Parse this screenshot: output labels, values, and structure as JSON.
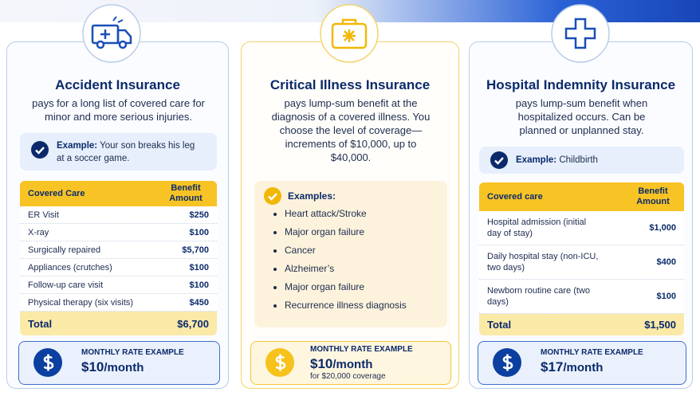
{
  "cards": [
    {
      "title": "Accident Insurance",
      "description": "pays for a long list of covered care for minor and more serious injuries.",
      "example": {
        "label": "Example:",
        "text": "Your son breaks his leg at a soccer game."
      },
      "table": {
        "headers": [
          "Covered Care",
          "Benefit Amount"
        ],
        "rows": [
          [
            "ER Visit",
            "$250"
          ],
          [
            "X-ray",
            "$100"
          ],
          [
            "Surgically repaired",
            "$5,700"
          ],
          [
            "Appliances (crutches)",
            "$100"
          ],
          [
            "Follow-up care visit",
            "$100"
          ],
          [
            "Physical therapy (six visits)",
            "$450"
          ]
        ],
        "total": [
          "Total",
          "$6,700"
        ]
      },
      "rate": {
        "label": "MONTHLY RATE EXAMPLE",
        "amount": "$10",
        "period": "/month"
      }
    },
    {
      "title": "Critical Illness Insurance",
      "description": "pays lump-sum benefit at the diagnosis of a covered illness. You choose the level of coverage—increments of $10,000, up to $40,000.",
      "examples": {
        "label": "Examples:",
        "items": [
          "Heart attack/Stroke",
          "Major organ failure",
          "Cancer",
          "Alzheimer’s",
          "Major organ failure",
          "Recurrence illness diagnosis"
        ]
      },
      "rate": {
        "label": "MONTHLY RATE EXAMPLE",
        "amount": "$10",
        "period": "/month",
        "note": "for $20,000 coverage"
      }
    },
    {
      "title": "Hospital Indemnity Insurance",
      "description": "pays lump-sum benefit when hospitalized occurs. Can be planned or unplanned stay.",
      "example": {
        "label": "Example:",
        "text": "Childbirth"
      },
      "table": {
        "headers": [
          "Covered care",
          "Benefit Amount"
        ],
        "rows": [
          [
            "Hospital admission (initial day of stay)",
            "$1,000"
          ],
          [
            "Daily hospital stay (non-ICU, two days)",
            "$400"
          ],
          [
            "Newborn routine care (two days)",
            "$100"
          ]
        ],
        "total": [
          "Total",
          "$1,500"
        ]
      },
      "rate": {
        "label": "MONTHLY RATE EXAMPLE",
        "amount": "$17",
        "period": "/month"
      }
    }
  ]
}
